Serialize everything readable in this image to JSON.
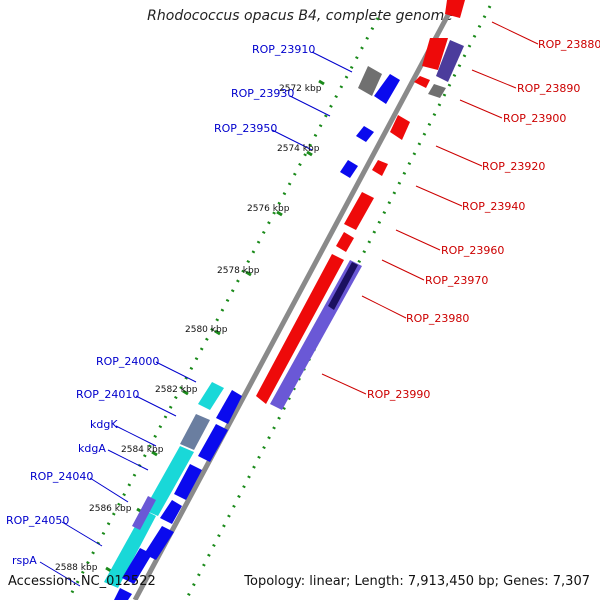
{
  "title": "Rhodococcus opacus B4, complete genome",
  "accession": "Accession: NC_012522",
  "summary": "Topology: linear; Length: 7,913,450 bp; Genes: 7,307",
  "colors": {
    "backbone": "#8a8a8a",
    "dots": "#1a8a1a",
    "forward_gene": "#0a0aee",
    "reverse_gene": "#ee0a0a",
    "label_blue": "#0000cc",
    "label_red": "#cc0000",
    "gray_gene": "#707070",
    "purple_gene": "#6a58d6",
    "cyan_gene": "#19d8d8"
  },
  "scale_labels": [
    {
      "text": "2572 kbp",
      "kbp": 2572
    },
    {
      "text": "2574 kbp",
      "kbp": 2574
    },
    {
      "text": "2576 kbp",
      "kbp": 2576
    },
    {
      "text": "2578 kbp",
      "kbp": 2578
    },
    {
      "text": "2580 kbp",
      "kbp": 2580
    },
    {
      "text": "2582 kbp",
      "kbp": 2582
    },
    {
      "text": "2584 kbp",
      "kbp": 2584
    },
    {
      "text": "2586 kbp",
      "kbp": 2586
    },
    {
      "text": "2588 kbp",
      "kbp": 2588
    }
  ],
  "genes_left": [
    {
      "label": "ROP_23910"
    },
    {
      "label": "ROP_23930"
    },
    {
      "label": "ROP_23950"
    },
    {
      "label": "ROP_24000"
    },
    {
      "label": "ROP_24010"
    },
    {
      "label": "kdgK"
    },
    {
      "label": "kdgA"
    },
    {
      "label": "ROP_24040"
    },
    {
      "label": "ROP_24050"
    },
    {
      "label": "rspA"
    }
  ],
  "genes_right": [
    {
      "label": "ROP_23880"
    },
    {
      "label": "ROP_23890"
    },
    {
      "label": "ROP_23900"
    },
    {
      "label": "ROP_23920"
    },
    {
      "label": "ROP_23940"
    },
    {
      "label": "ROP_23960"
    },
    {
      "label": "ROP_23970"
    },
    {
      "label": "ROP_23980"
    },
    {
      "label": "ROP_23990"
    }
  ]
}
